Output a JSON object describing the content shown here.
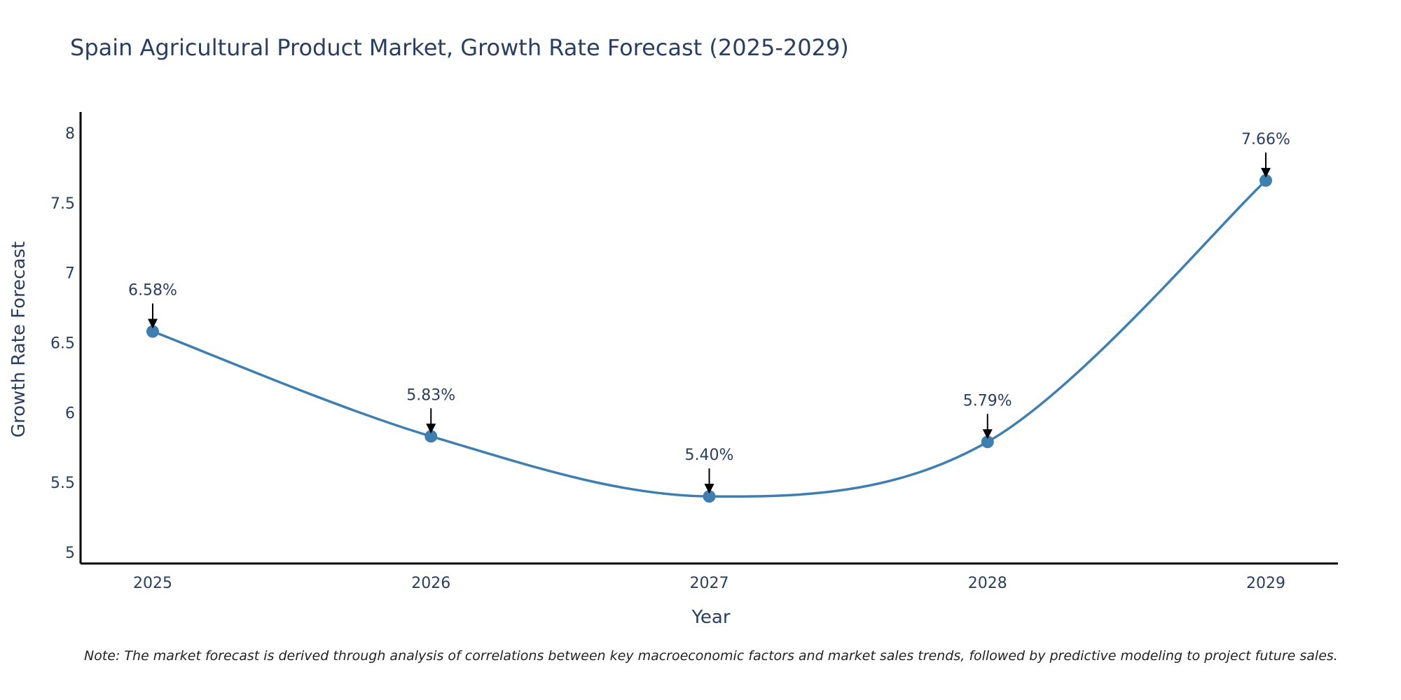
{
  "chart_data": {
    "type": "line",
    "title": "Spain Agricultural Product Market, Growth Rate Forecast (2025-2029)",
    "xlabel": "Year",
    "ylabel": "Growth Rate Forecast",
    "categories": [
      "2025",
      "2026",
      "2027",
      "2028",
      "2029"
    ],
    "series": [
      {
        "name": "Growth Rate Forecast",
        "values": [
          6.58,
          5.83,
          5.4,
          5.79,
          7.66
        ],
        "labels": [
          "6.58%",
          "5.83%",
          "5.40%",
          "5.79%",
          "7.66%"
        ]
      }
    ],
    "ylim": [
      4.92,
      8.15
    ],
    "yticks": [
      5,
      5.5,
      6,
      6.5,
      7,
      7.5,
      8
    ],
    "ytick_labels": [
      "5",
      "5.5",
      "6",
      "6.5",
      "7",
      "7.5",
      "8"
    ],
    "grid": false,
    "line_style": "spline",
    "note": "Note: The market forecast is derived through analysis of correlations between key macroeconomic factors and market sales trends, followed by predictive modeling to project future sales.",
    "colors": {
      "line": "#3f7fb0",
      "marker": "#3f7fb0",
      "axis": "#000000",
      "text": "#2a3f5f",
      "arrow": "#000000"
    }
  }
}
